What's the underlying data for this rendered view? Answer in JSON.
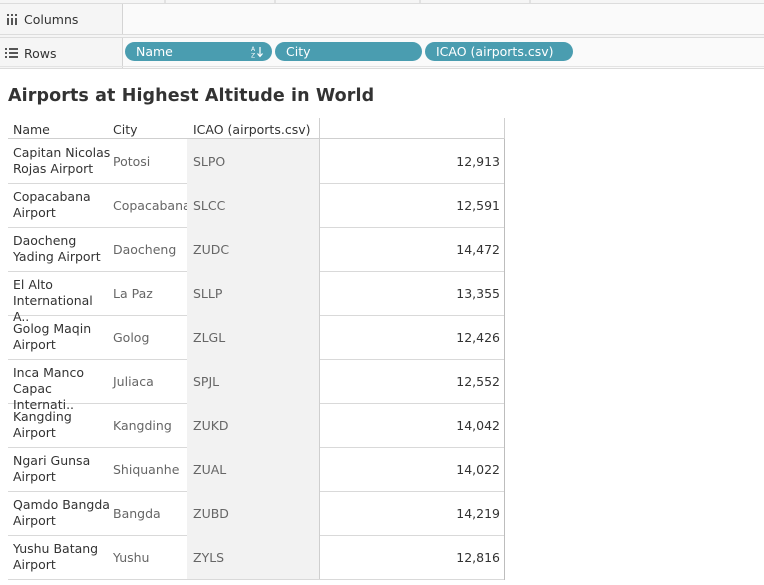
{
  "shelves": {
    "columns_label": "Columns",
    "rows_label": "Rows",
    "pills": [
      {
        "label": "Name",
        "sorted": true
      },
      {
        "label": "City"
      },
      {
        "label": "ICAO (airports.csv)"
      }
    ]
  },
  "sheet": {
    "title": "Airports at Highest Altitude in World",
    "headers": {
      "name": "Name",
      "city": "City",
      "icao": "ICAO (airports.csv)"
    },
    "rows": [
      {
        "name": "Capitan Nicolas\nRojas Airport",
        "city": "Potosi",
        "icao": "SLPO",
        "value": "12,913"
      },
      {
        "name": "Copacabana\nAirport",
        "city": "Copacabana",
        "icao": "SLCC",
        "value": "12,591"
      },
      {
        "name": "Daocheng\nYading Airport",
        "city": "Daocheng",
        "icao": "ZUDC",
        "value": "14,472"
      },
      {
        "name": "El Alto\nInternational A..",
        "city": "La Paz",
        "icao": "SLLP",
        "value": "13,355"
      },
      {
        "name": "Golog Maqin\nAirport",
        "city": "Golog",
        "icao": "ZLGL",
        "value": "12,426"
      },
      {
        "name": "Inca Manco\nCapac Internati..",
        "city": "Juliaca",
        "icao": "SPJL",
        "value": "12,552"
      },
      {
        "name": "Kangding\nAirport",
        "city": "Kangding",
        "icao": "ZUKD",
        "value": "14,042"
      },
      {
        "name": "Ngari Gunsa\nAirport",
        "city": "Shiquanhe",
        "icao": "ZUAL",
        "value": "14,022"
      },
      {
        "name": "Qamdo Bangda\nAirport",
        "city": "Bangda",
        "icao": "ZUBD",
        "value": "14,219"
      },
      {
        "name": "Yushu Batang\nAirport",
        "city": "Yushu",
        "icao": "ZYLS",
        "value": "12,816"
      }
    ]
  },
  "colors": {
    "pill": "#4a9db0",
    "shelf_bg": "#f5f5f5",
    "icao_bg": "#f2f2f2"
  }
}
